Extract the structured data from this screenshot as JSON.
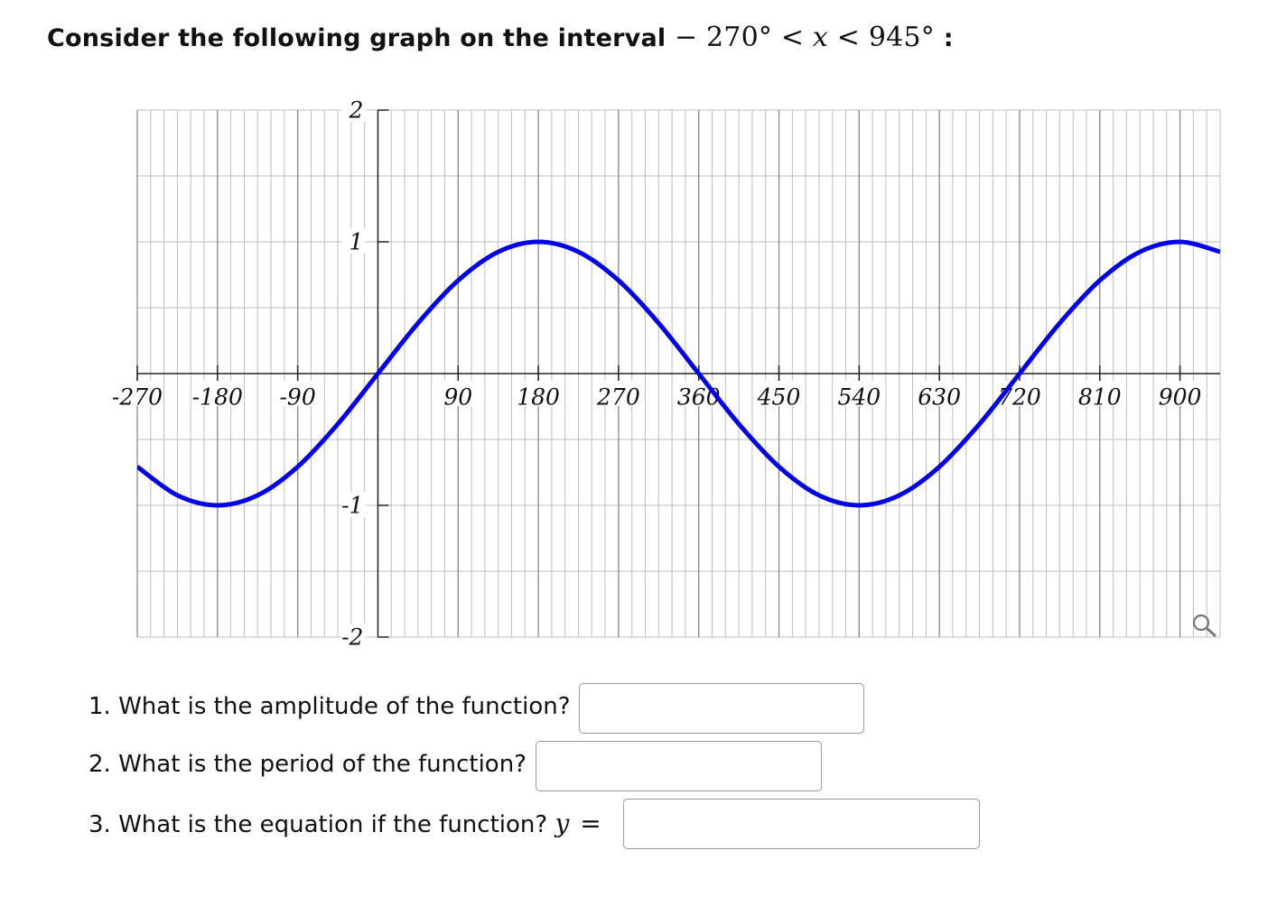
{
  "heading": {
    "text": "Consider the following graph on the interval",
    "lower_bound": "− 270°",
    "var": "x",
    "upper_bound": "945°",
    "lt": "<",
    "colon": ":"
  },
  "chart_data": {
    "type": "line",
    "xlim": [
      -270,
      945
    ],
    "ylim": [
      -2,
      2
    ],
    "x_ticks": [
      -270,
      -180,
      -90,
      90,
      180,
      270,
      360,
      450,
      540,
      630,
      720,
      810,
      900
    ],
    "x_tick_labels": [
      "-270",
      "-180",
      "-90",
      "90",
      "180",
      "270",
      "360",
      "450",
      "540",
      "630",
      "720",
      "810",
      "900"
    ],
    "y_ticks": [
      2,
      1,
      -1,
      -2
    ],
    "y_tick_labels": [
      "2",
      "1",
      "-1",
      "-2"
    ],
    "grid": true,
    "series": [
      {
        "function": "sin(x/2)",
        "color": "#0000ee",
        "x": [
          -270,
          -225,
          -180,
          -135,
          -90,
          -45,
          0,
          45,
          90,
          135,
          180,
          225,
          270,
          315,
          360,
          405,
          450,
          495,
          540,
          585,
          630,
          675,
          720,
          765,
          810,
          855,
          900,
          945
        ],
        "y": [
          -0.707,
          -0.924,
          -1,
          -0.924,
          -0.707,
          -0.383,
          0,
          0.383,
          0.707,
          0.924,
          1,
          0.924,
          0.707,
          0.383,
          0,
          -0.383,
          -0.707,
          -0.924,
          -1,
          -0.924,
          -0.707,
          -0.383,
          0,
          0.383,
          0.707,
          0.924,
          1,
          0.924
        ]
      }
    ]
  },
  "questions": [
    {
      "label": "1. What is the amplitude of the function?",
      "value": ""
    },
    {
      "label": "2. What is the period of the function?",
      "value": ""
    },
    {
      "label": "3. What is the equation if the function?",
      "var": "y",
      "eq": "=",
      "value": ""
    }
  ],
  "icons": {
    "zoom": "magnifier-icon"
  }
}
